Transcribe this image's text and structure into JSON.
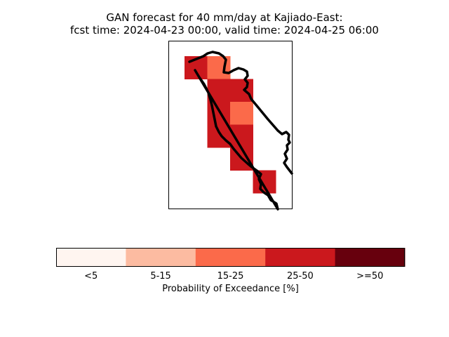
{
  "title": {
    "line1": "GAN forecast for 40 mm/day at Kajiado-East:",
    "line2": "fcst time: 2024-04-23 00:00, valid time: 2024-04-25 06:00"
  },
  "map": {
    "region": "Kajiado-East",
    "cells": [
      {
        "row": 0,
        "col": 0,
        "category": "25-50"
      },
      {
        "row": 0,
        "col": 1,
        "category": "15-25"
      },
      {
        "row": 1,
        "col": 1,
        "category": "25-50"
      },
      {
        "row": 1,
        "col": 2,
        "category": "25-50"
      },
      {
        "row": 2,
        "col": 1,
        "category": "25-50"
      },
      {
        "row": 2,
        "col": 2,
        "category": "15-25"
      },
      {
        "row": 3,
        "col": 1,
        "category": "25-50"
      },
      {
        "row": 3,
        "col": 2,
        "category": "25-50"
      },
      {
        "row": 4,
        "col": 2,
        "category": "25-50"
      },
      {
        "row": 5,
        "col": 3,
        "category": "25-50"
      }
    ]
  },
  "colorbar": {
    "label": "Probability of Exceedance [%]",
    "bins": [
      {
        "label": "<5",
        "color": "#fff5f0"
      },
      {
        "label": "5-15",
        "color": "#fcbba1"
      },
      {
        "label": "15-25",
        "color": "#fb6a4a"
      },
      {
        "label": "25-50",
        "color": "#cb181d"
      },
      {
        "label": ">=50",
        "color": "#67000d"
      }
    ]
  }
}
